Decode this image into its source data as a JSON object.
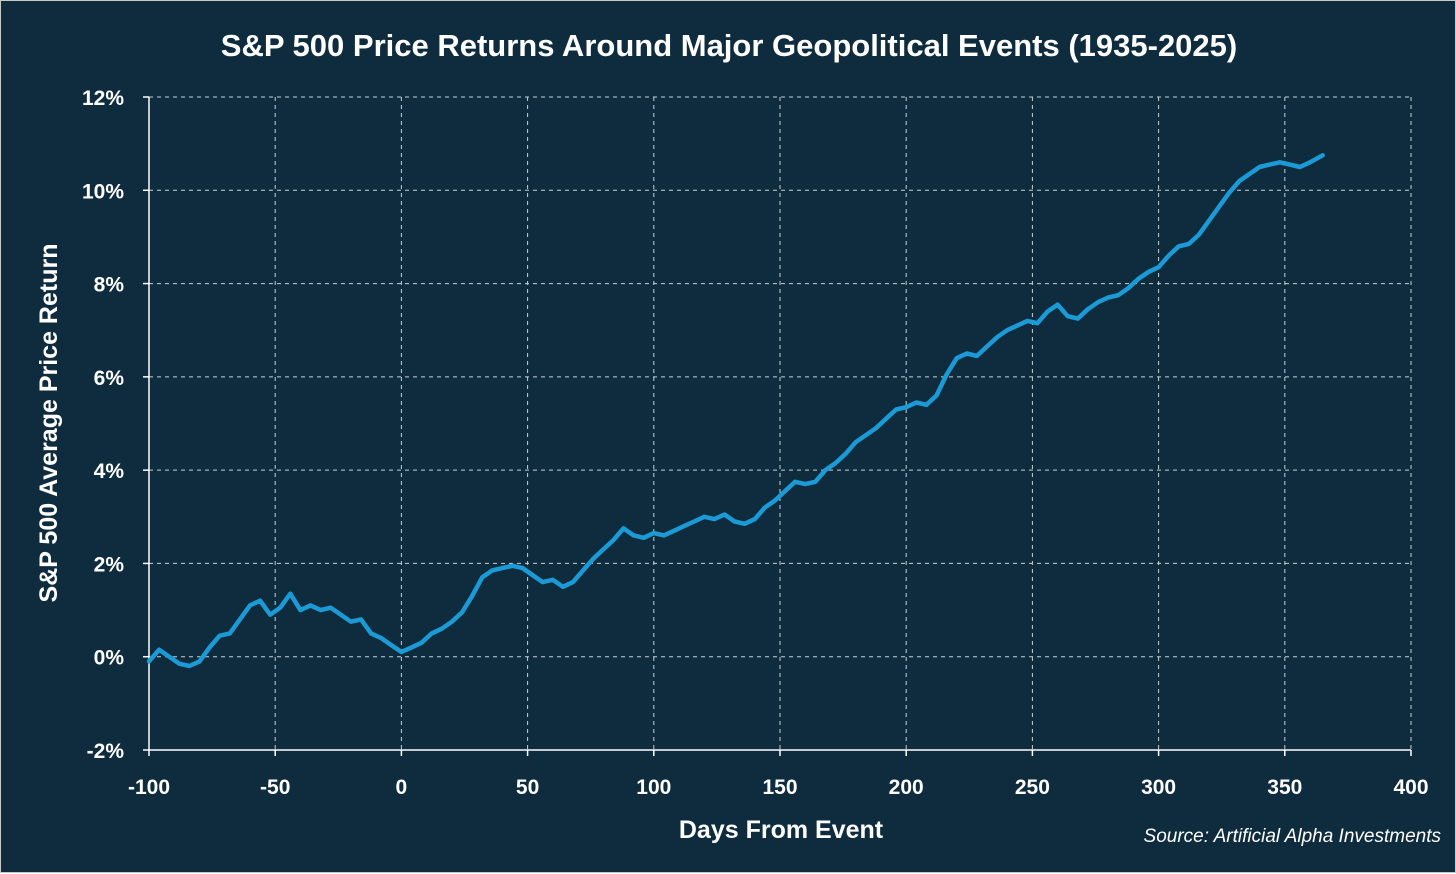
{
  "chart_data": {
    "type": "line",
    "title": "S&P 500 Price Returns Around Major Geopolitical Events (1935-2025)",
    "xlabel": "Days From Event",
    "ylabel": "S&P 500 Average Price Return",
    "source": "Source: Artificial Alpha Investments",
    "xlim": [
      -100,
      400
    ],
    "ylim": [
      -2,
      12
    ],
    "x_ticks": [
      -100,
      -50,
      0,
      50,
      100,
      150,
      200,
      250,
      300,
      350,
      400
    ],
    "x_tick_labels": [
      "-100",
      "-50",
      "0",
      "50",
      "100",
      "150",
      "200",
      "250",
      "300",
      "350",
      "400"
    ],
    "y_ticks": [
      -2,
      0,
      2,
      4,
      6,
      8,
      10,
      12
    ],
    "y_tick_labels": [
      "-2%",
      "0%",
      "2%",
      "4%",
      "6%",
      "8%",
      "10%",
      "12%"
    ],
    "grid": true,
    "line_color": "#1b9ad6",
    "background_color": "#0e2c3e",
    "series": [
      {
        "x": [
          -100,
          -96,
          -92,
          -88,
          -84,
          -80,
          -76,
          -72,
          -68,
          -64,
          -60,
          -56,
          -52,
          -48,
          -44,
          -40,
          -36,
          -32,
          -28,
          -24,
          -20,
          -16,
          -12,
          -8,
          -4,
          0,
          4,
          8,
          12,
          16,
          20,
          24,
          28,
          32,
          36,
          40,
          44,
          48,
          52,
          56,
          60,
          64,
          68,
          72,
          76,
          80,
          84,
          88,
          92,
          96,
          100,
          104,
          108,
          112,
          116,
          120,
          124,
          128,
          132,
          136,
          140,
          144,
          148,
          152,
          156,
          160,
          164,
          168,
          172,
          176,
          180,
          184,
          188,
          192,
          196,
          200,
          204,
          208,
          212,
          216,
          220,
          224,
          228,
          232,
          236,
          240,
          244,
          248,
          252,
          256,
          260,
          264,
          268,
          272,
          276,
          280,
          284,
          288,
          292,
          296,
          300,
          304,
          308,
          312,
          316,
          320,
          324,
          328,
          332,
          336,
          340,
          344,
          348,
          352,
          356,
          360,
          365
        ],
        "values": [
          -0.1,
          0.15,
          0.0,
          -0.15,
          -0.2,
          -0.1,
          0.2,
          0.45,
          0.5,
          0.8,
          1.1,
          1.2,
          0.9,
          1.05,
          1.35,
          1.0,
          1.1,
          1.0,
          1.05,
          0.9,
          0.75,
          0.8,
          0.5,
          0.4,
          0.25,
          0.1,
          0.2,
          0.3,
          0.5,
          0.6,
          0.75,
          0.95,
          1.3,
          1.7,
          1.85,
          1.9,
          1.95,
          1.9,
          1.75,
          1.6,
          1.65,
          1.5,
          1.6,
          1.85,
          2.1,
          2.3,
          2.5,
          2.75,
          2.6,
          2.55,
          2.65,
          2.6,
          2.7,
          2.8,
          2.9,
          3.0,
          2.95,
          3.05,
          2.9,
          2.85,
          2.95,
          3.2,
          3.35,
          3.55,
          3.75,
          3.7,
          3.75,
          4.0,
          4.15,
          4.35,
          4.6,
          4.75,
          4.9,
          5.1,
          5.3,
          5.35,
          5.45,
          5.4,
          5.6,
          6.05,
          6.4,
          6.5,
          6.45,
          6.65,
          6.85,
          7.0,
          7.1,
          7.2,
          7.15,
          7.4,
          7.55,
          7.3,
          7.25,
          7.45,
          7.6,
          7.7,
          7.75,
          7.9,
          8.1,
          8.25,
          8.35,
          8.6,
          8.8,
          8.85,
          9.05,
          9.35,
          9.65,
          9.95,
          10.2,
          10.35,
          10.5,
          10.55,
          10.6,
          10.55,
          10.5,
          10.6,
          10.75
        ]
      }
    ]
  }
}
